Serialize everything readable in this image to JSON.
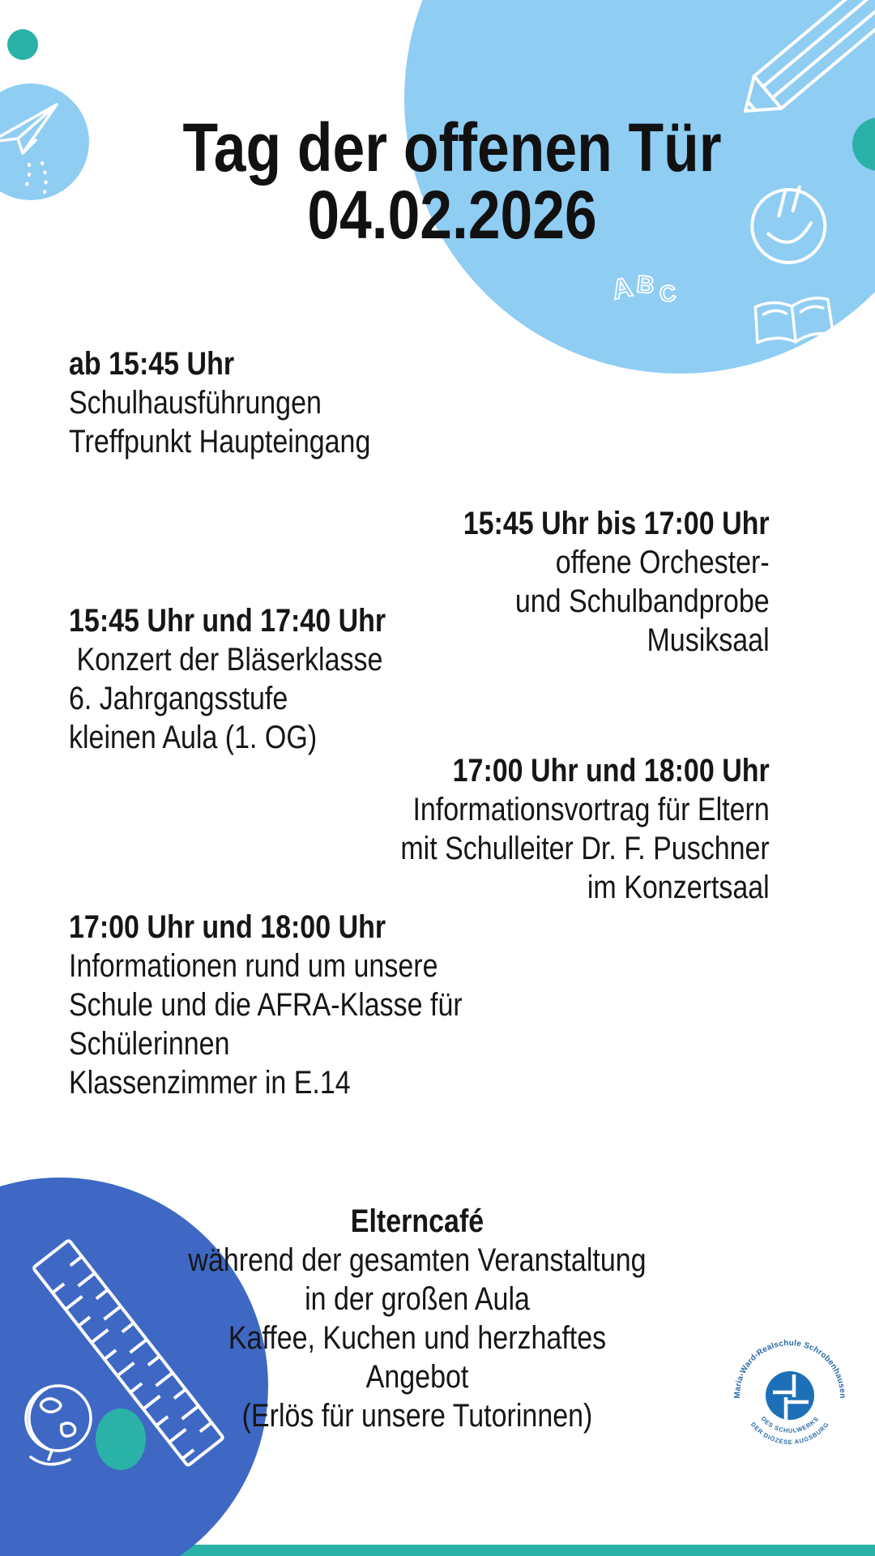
{
  "title": {
    "line1": "Tag der offenen Tür",
    "line2": "04.02.2026"
  },
  "schedule": [
    {
      "id": "tours",
      "time": "ab 15:45 Uhr",
      "lines": [
        "Schulhausführungen",
        "Treffpunkt Haupteingang"
      ]
    },
    {
      "id": "orchestra",
      "time": "15:45 Uhr bis 17:00 Uhr",
      "lines": [
        "offene Orchester-",
        "und Schulbandprobe",
        "Musiksaal"
      ]
    },
    {
      "id": "concert",
      "time": "15:45 Uhr und 17:40 Uhr",
      "lines": [
        " Konzert der Bläserklasse",
        "6. Jahrgangsstufe",
        "kleinen Aula (1. OG)"
      ]
    },
    {
      "id": "lecture",
      "time": "17:00 Uhr und 18:00 Uhr",
      "lines": [
        "Informationsvortrag für Eltern",
        "mit Schulleiter Dr. F. Puschner",
        "im Konzertsaal"
      ]
    },
    {
      "id": "info",
      "time": "17:00 Uhr und 18:00 Uhr",
      "lines": [
        "Informationen rund um unsere",
        "Schule und die AFRA-Klasse für",
        "Schülerinnen",
        "Klassenzimmer in E.14"
      ]
    },
    {
      "id": "cafe",
      "time": "Elterncafé",
      "lines": [
        "während der gesamten Veranstaltung",
        "in der großen Aula",
        "Kaffee, Kuchen und herzhaftes",
        "Angebot",
        "(Erlös für unsere Tutorinnen)"
      ]
    }
  ],
  "abc": {
    "a": "A",
    "b": "B",
    "c": "C"
  },
  "logo": {
    "arc_top": "Maria-Ward-Realschule Schrobenhausen",
    "arc_bottom1": "DES SCHULWERKS",
    "arc_bottom2": "DER DIÖZESE AUGSBURG"
  },
  "colors": {
    "light_blue": "#8fcdf3",
    "teal": "#2ab2a8",
    "royal_blue": "#3e68c4",
    "logo_blue": "#1d70b7",
    "logo_text_blue": "#2a6ba8",
    "text": "#161616"
  }
}
